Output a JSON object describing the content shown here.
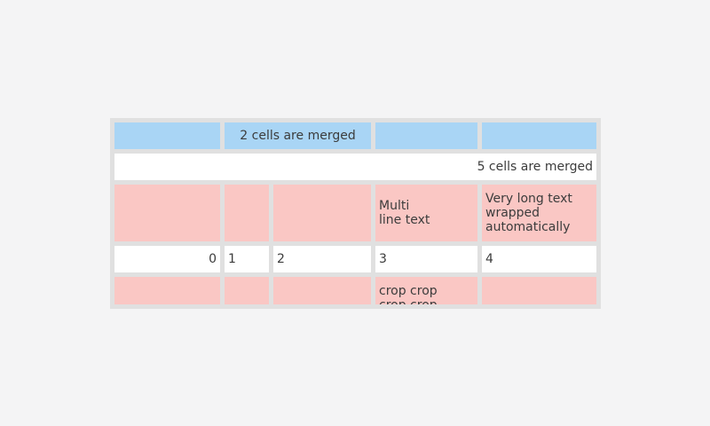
{
  "colors": {
    "page_bg": "#f4f4f5",
    "table_bg": "#e0e0e0",
    "cell_blue": "#a9d5f5",
    "cell_pink": "#fac7c4",
    "cell_white": "#ffffff",
    "text": "#3c3c3c"
  },
  "table": {
    "merged_2_label": "2 cells are merged",
    "merged_5_label": "5 cells are merged",
    "multiline_label": "Multi\nline text",
    "wrapped_label": "Very long text wrapped automatically",
    "crop_label": "crop crop\ncrop crop\ncrop crop",
    "row4_values": [
      "0",
      "1",
      "2",
      "3",
      "4"
    ]
  }
}
